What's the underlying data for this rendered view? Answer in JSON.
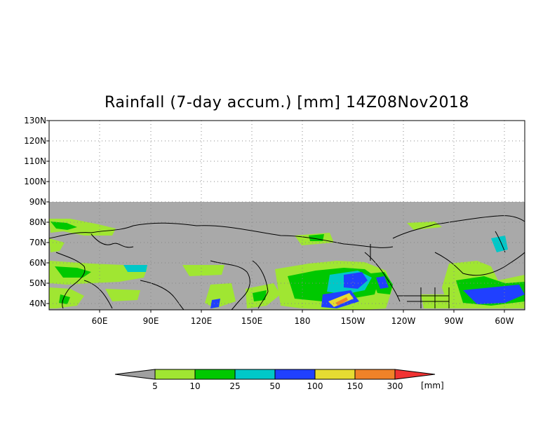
{
  "title": "Rainfall (7-day accum.) [mm] 14Z08Nov2018",
  "lat_labels": [
    "130N",
    "120N",
    "110N",
    "100N",
    "90N",
    "80N",
    "70N",
    "60N",
    "50N",
    "40N"
  ],
  "lon_labels": [
    "60E",
    "90E",
    "120E",
    "150E",
    "180",
    "150W",
    "120W",
    "90W",
    "60W"
  ],
  "colorbar": {
    "thresholds": [
      "5",
      "10",
      "25",
      "50",
      "100",
      "150",
      "300"
    ],
    "unit": "[mm]",
    "colors": [
      "#a0a0a0",
      "#a0e632",
      "#00c800",
      "#00c8c8",
      "#2040ff",
      "#e6dc32",
      "#f08228",
      "#f03232"
    ]
  },
  "colors": {
    "no_data": "#a9a9a9",
    "coastline": "#000000",
    "grid": "#888888"
  }
}
